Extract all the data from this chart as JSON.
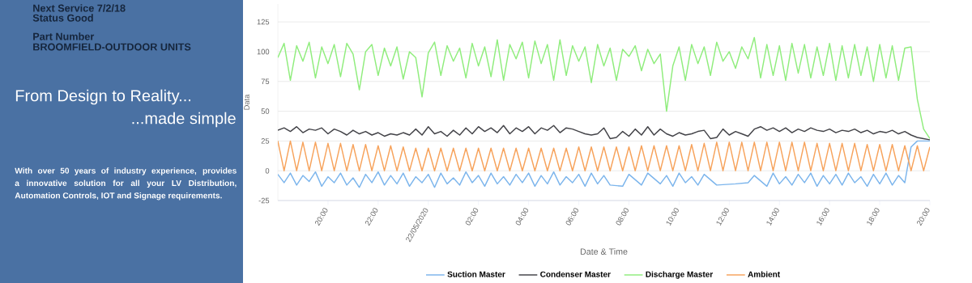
{
  "chart_data": {
    "type": "line",
    "xlabel": "Date & Time",
    "ylabel": "Data",
    "annotations": [
      "Next Service 7/2/18",
      "Status Good",
      "Part Number",
      "BROOMFIELD-OUTDOOR UNITS",
      "From Design to Reality...",
      "...made simple",
      "With over 50 years of industry experience, provides a innovative solution for all your LV Distribution, Automation Controls, IOT and Signage requirements."
    ],
    "x": [
      "2020-05-21T18:00",
      "2020-05-21T18:15",
      "2020-05-21T18:30",
      "2020-05-21T18:45",
      "2020-05-21T19:00",
      "2020-05-21T19:15",
      "2020-05-21T19:30",
      "2020-05-21T19:45",
      "2020-05-21T20:00",
      "2020-05-21T20:15",
      "2020-05-21T20:30",
      "2020-05-21T20:45",
      "2020-05-21T21:00",
      "2020-05-21T21:15",
      "2020-05-21T21:30",
      "2020-05-21T21:45",
      "2020-05-21T22:00",
      "2020-05-21T22:15",
      "2020-05-21T22:30",
      "2020-05-21T22:45",
      "2020-05-21T23:00",
      "2020-05-21T23:15",
      "2020-05-21T23:30",
      "2020-05-21T23:45",
      "2020-05-22T00:00",
      "2020-05-22T00:15",
      "2020-05-22T00:30",
      "2020-05-22T00:45",
      "2020-05-22T01:00",
      "2020-05-22T01:15",
      "2020-05-22T01:30",
      "2020-05-22T01:45",
      "2020-05-22T02:00",
      "2020-05-22T02:15",
      "2020-05-22T02:30",
      "2020-05-22T02:45",
      "2020-05-22T03:00",
      "2020-05-22T03:15",
      "2020-05-22T03:30",
      "2020-05-22T03:45",
      "2020-05-22T04:00",
      "2020-05-22T04:15",
      "2020-05-22T04:30",
      "2020-05-22T04:45",
      "2020-05-22T05:00",
      "2020-05-22T05:15",
      "2020-05-22T05:30",
      "2020-05-22T05:45",
      "2020-05-22T06:00",
      "2020-05-22T06:15",
      "2020-05-22T06:30",
      "2020-05-22T06:45",
      "2020-05-22T07:00",
      "2020-05-22T07:15",
      "2020-05-22T07:30",
      "2020-05-22T07:45",
      "2020-05-22T08:00",
      "2020-05-22T08:15",
      "2020-05-22T08:30",
      "2020-05-22T08:45",
      "2020-05-22T09:00",
      "2020-05-22T09:15",
      "2020-05-22T09:30",
      "2020-05-22T09:45",
      "2020-05-22T10:00",
      "2020-05-22T10:15",
      "2020-05-22T10:30",
      "2020-05-22T10:45",
      "2020-05-22T11:00",
      "2020-05-22T11:15",
      "2020-05-22T11:30",
      "2020-05-22T11:45",
      "2020-05-22T12:00",
      "2020-05-22T12:15",
      "2020-05-22T12:30",
      "2020-05-22T12:45",
      "2020-05-22T13:00",
      "2020-05-22T13:15",
      "2020-05-22T13:30",
      "2020-05-22T13:45",
      "2020-05-22T14:00",
      "2020-05-22T14:15",
      "2020-05-22T14:30",
      "2020-05-22T14:45",
      "2020-05-22T15:00",
      "2020-05-22T15:15",
      "2020-05-22T15:30",
      "2020-05-22T15:45",
      "2020-05-22T16:00",
      "2020-05-22T16:15",
      "2020-05-22T16:30",
      "2020-05-22T16:45",
      "2020-05-22T17:00",
      "2020-05-22T17:15",
      "2020-05-22T17:30",
      "2020-05-22T17:45",
      "2020-05-22T18:00",
      "2020-05-22T18:15",
      "2020-05-22T18:30",
      "2020-05-22T18:45",
      "2020-05-22T19:00",
      "2020-05-22T19:15",
      "2020-05-22T19:30",
      "2020-05-22T19:45",
      "2020-05-22T20:00"
    ],
    "series": [
      {
        "name": "Suction Master",
        "color": "#7cb5ec",
        "values": [
          -3,
          -10,
          -2,
          -12,
          -4,
          -9,
          -1,
          -13,
          -5,
          -10,
          -2,
          -12,
          -6,
          -14,
          -3,
          -10,
          -1,
          -12,
          -4,
          -11,
          -2,
          -13,
          -5,
          -10,
          -3,
          -14,
          -2,
          -11,
          -6,
          -12,
          -1,
          -10,
          -4,
          -13,
          -2,
          -11,
          -5,
          -12,
          -3,
          -10,
          -2,
          -13,
          -4,
          -11,
          -1,
          -12,
          -5,
          -10,
          -3,
          -13,
          -2,
          -11,
          -4,
          -12,
          null,
          -13,
          -3,
          null,
          -12,
          -2,
          null,
          -11,
          -4,
          -13,
          -2,
          -10,
          -5,
          -12,
          -3,
          null,
          -12,
          null,
          null,
          -11,
          null,
          -10,
          -4,
          null,
          -13,
          -2,
          -11,
          -5,
          -12,
          -3,
          -10,
          -2,
          -13,
          -4,
          -11,
          -3,
          -12,
          -2,
          -10,
          -5,
          -13,
          -3,
          -11,
          -2,
          -12,
          -4,
          -10,
          20,
          25,
          25,
          25
        ]
      },
      {
        "name": "Condenser Master",
        "color": "#434348",
        "values": [
          34,
          36,
          33,
          37,
          32,
          35,
          34,
          36,
          31,
          35,
          33,
          30,
          34,
          31,
          33,
          30,
          32,
          29,
          31,
          30,
          32,
          30,
          35,
          30,
          37,
          31,
          33,
          29,
          34,
          30,
          36,
          31,
          37,
          33,
          36,
          32,
          38,
          31,
          36,
          33,
          37,
          31,
          36,
          34,
          38,
          32,
          36,
          35,
          33,
          31,
          30,
          31,
          36,
          27,
          28,
          33,
          29,
          35,
          30,
          37,
          30,
          35,
          31,
          29,
          32,
          30,
          31,
          33,
          34,
          27,
          28,
          35,
          30,
          33,
          31,
          29,
          35,
          37,
          34,
          36,
          33,
          36,
          32,
          35,
          33,
          36,
          34,
          33,
          35,
          32,
          34,
          33,
          35,
          32,
          34,
          31,
          33,
          32,
          34,
          31,
          33,
          30,
          28,
          27,
          26
        ]
      },
      {
        "name": "Discharge Master",
        "color": "#90ed7d",
        "values": [
          95,
          107,
          76,
          105,
          92,
          108,
          78,
          104,
          90,
          106,
          79,
          107,
          98,
          68,
          100,
          106,
          80,
          103,
          88,
          104,
          77,
          100,
          95,
          62,
          99,
          108,
          80,
          105,
          92,
          103,
          78,
          107,
          88,
          104,
          79,
          110,
          76,
          106,
          94,
          108,
          78,
          109,
          90,
          106,
          76,
          110,
          80,
          105,
          92,
          104,
          74,
          106,
          88,
          103,
          76,
          102,
          96,
          105,
          84,
          102,
          90,
          98,
          50,
          88,
          104,
          76,
          106,
          90,
          104,
          80,
          108,
          92,
          100,
          86,
          104,
          94,
          112,
          78,
          106,
          80,
          105,
          76,
          107,
          82,
          106,
          78,
          104,
          80,
          107,
          76,
          105,
          78,
          106,
          80,
          104,
          75,
          106,
          78,
          105,
          76,
          103,
          104,
          60,
          35,
          27
        ]
      },
      {
        "name": "Ambient",
        "color": "#f7a35c",
        "values": [
          25,
          0,
          25,
          0,
          24,
          0,
          24,
          0,
          23,
          0,
          23,
          0,
          22,
          0,
          22,
          0,
          21,
          0,
          21,
          0,
          20,
          0,
          19,
          0,
          19,
          0,
          19,
          0,
          19,
          0,
          19,
          0,
          19,
          0,
          19,
          0,
          19,
          0,
          19,
          0,
          19,
          0,
          19,
          0,
          19,
          0,
          19,
          0,
          20,
          0,
          20,
          0,
          20,
          0,
          20,
          0,
          20,
          0,
          21,
          0,
          21,
          0,
          21,
          0,
          21,
          0,
          22,
          0,
          23,
          0,
          24,
          0,
          24,
          0,
          24,
          0,
          24,
          0,
          24,
          0,
          24,
          0,
          24,
          0,
          24,
          0,
          23,
          0,
          23,
          0,
          23,
          0,
          23,
          0,
          22,
          0,
          22,
          0,
          22,
          0,
          21,
          0,
          21,
          0,
          20
        ]
      }
    ],
    "xlim": [
      "2020-05-21T18:00",
      "2020-05-22T20:00"
    ],
    "xticks": [
      {
        "value": "2020-05-21T20:00",
        "label": "20:00"
      },
      {
        "value": "2020-05-21T22:00",
        "label": "22:00"
      },
      {
        "value": "2020-05-22T00:00",
        "label": "22/05/2020"
      },
      {
        "value": "2020-05-22T02:00",
        "label": "02:00"
      },
      {
        "value": "2020-05-22T04:00",
        "label": "04:00"
      },
      {
        "value": "2020-05-22T06:00",
        "label": "06:00"
      },
      {
        "value": "2020-05-22T08:00",
        "label": "08:00"
      },
      {
        "value": "2020-05-22T10:00",
        "label": "10:00"
      },
      {
        "value": "2020-05-22T12:00",
        "label": "12:00"
      },
      {
        "value": "2020-05-22T14:00",
        "label": "14:00"
      },
      {
        "value": "2020-05-22T16:00",
        "label": "16:00"
      },
      {
        "value": "2020-05-22T18:00",
        "label": "18:00"
      },
      {
        "value": "2020-05-22T20:00",
        "label": "20:00"
      }
    ],
    "ylim": [
      -25,
      140
    ],
    "yticks": [
      -25,
      0,
      25,
      50,
      75,
      100,
      125
    ],
    "grid": "y",
    "legend": "bottom"
  }
}
